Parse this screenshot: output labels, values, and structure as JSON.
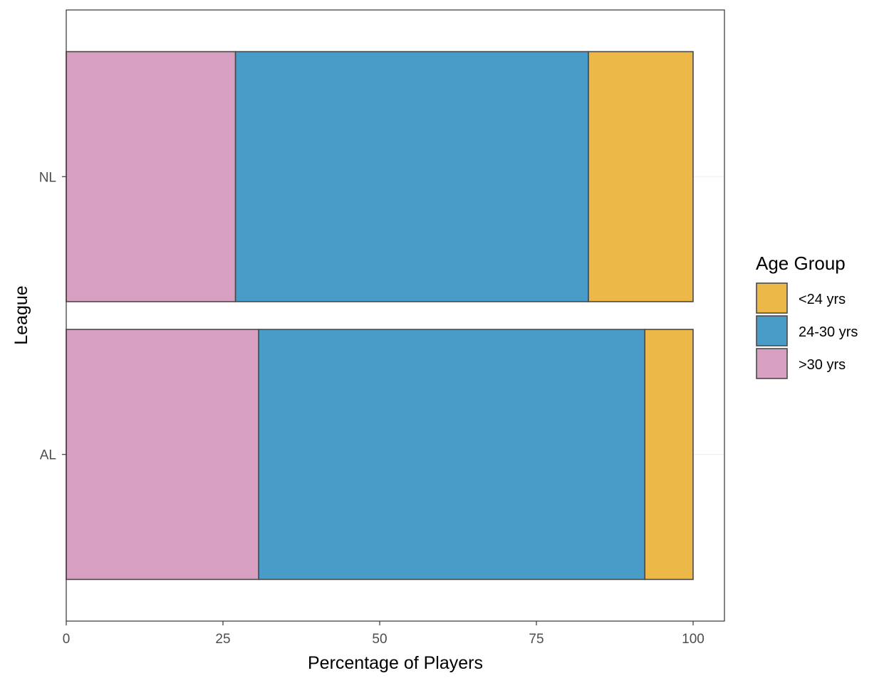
{
  "chart_data": {
    "type": "bar",
    "orientation": "horizontal",
    "stacked": true,
    "categories": [
      "AL",
      "NL"
    ],
    "series": [
      {
        "name": ">30 yrs",
        "color": "#D8A0C0",
        "values": [
          30.7,
          27.0
        ]
      },
      {
        "name": "24-30 yrs",
        "color": "#4A9CC8",
        "values": [
          61.6,
          56.3
        ]
      },
      {
        "name": "<24 yrs",
        "color": "#ECB848",
        "values": [
          7.7,
          16.7
        ]
      }
    ],
    "legend_order": [
      "<24 yrs",
      "24-30 yrs",
      ">30 yrs"
    ],
    "xlabel": "Percentage of Players",
    "ylabel": "League",
    "xlim": [
      0,
      105
    ],
    "xticks": [
      0,
      25,
      50,
      75,
      100
    ],
    "legend_title": "Age Group",
    "legend_position": "right",
    "grid": true
  }
}
